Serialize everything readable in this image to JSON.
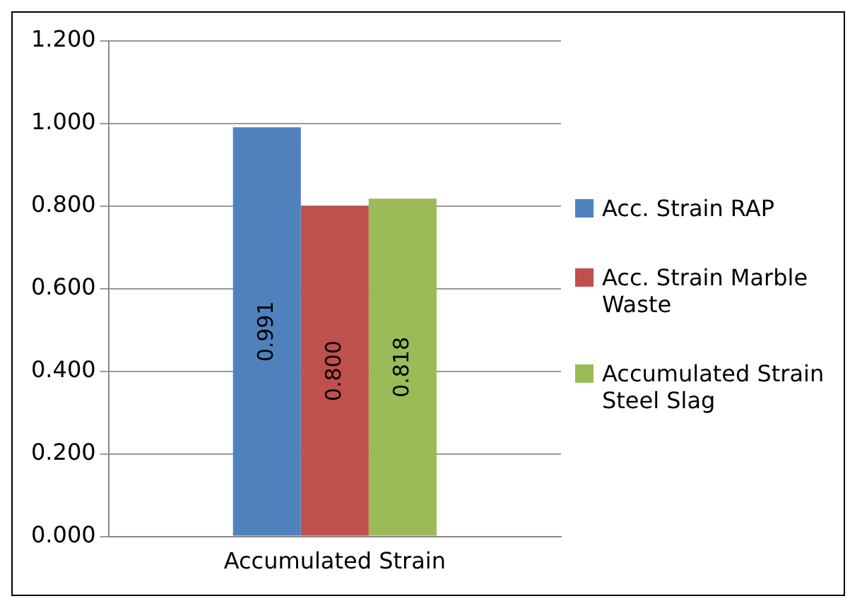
{
  "chart_data": {
    "type": "bar",
    "categories": [
      "Accumulated Strain"
    ],
    "series": [
      {
        "name": "Acc. Strain RAP",
        "color": "#4f81bd",
        "values": [
          0.991
        ],
        "value_labels": [
          "0.991"
        ]
      },
      {
        "name": "Acc. Strain Marble Waste",
        "color": "#c0504d",
        "values": [
          0.8
        ],
        "value_labels": [
          "0.800"
        ]
      },
      {
        "name": "Accumulated Strain Steel Slag",
        "color": "#9bbb59",
        "values": [
          0.818
        ],
        "value_labels": [
          "0.818"
        ]
      }
    ],
    "ylim": [
      0,
      1.2
    ],
    "yticks": [
      {
        "value": 0,
        "label": "0.000"
      },
      {
        "value": 0.2,
        "label": "0.200"
      },
      {
        "value": 0.4,
        "label": "0.400"
      },
      {
        "value": 0.6,
        "label": "0.600"
      },
      {
        "value": 0.8,
        "label": "0.800"
      },
      {
        "value": 1,
        "label": "1.000"
      },
      {
        "value": 1.2,
        "label": "1.200"
      }
    ],
    "grid": "y",
    "legend": "right"
  }
}
